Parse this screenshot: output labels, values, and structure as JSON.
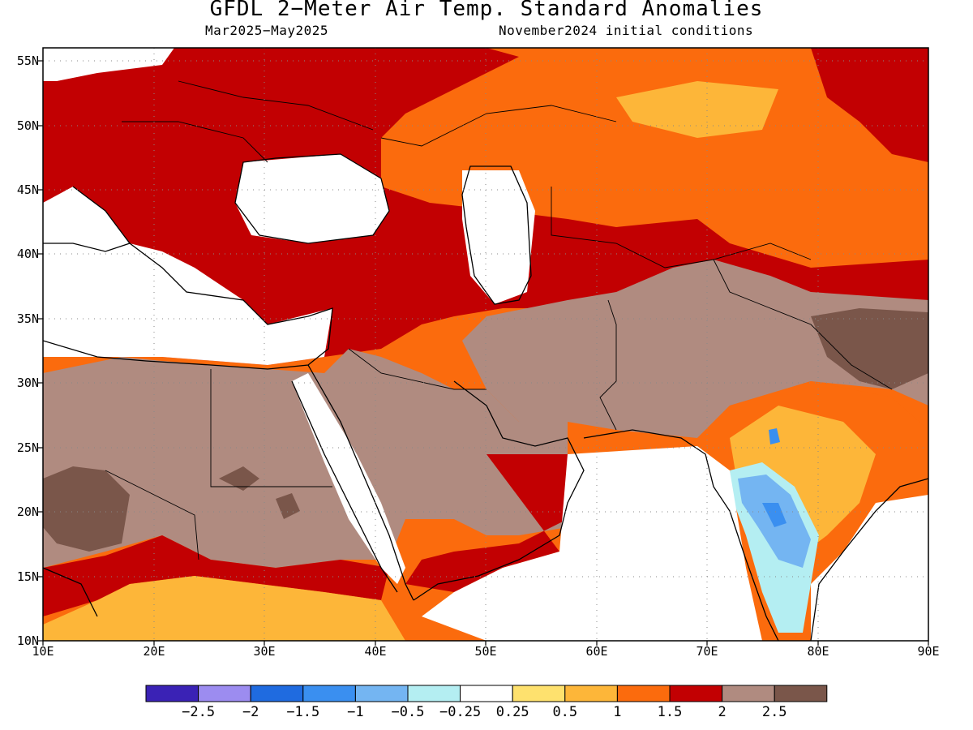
{
  "title": "GFDL 2−Meter Air Temp. Standard Anomalies",
  "subtitle_left": "Mar2025−May2025",
  "subtitle_right": "November2024 initial conditions",
  "map": {
    "lat_labels": [
      "55N",
      "50N",
      "45N",
      "40N",
      "35N",
      "30N",
      "25N",
      "20N",
      "15N",
      "10N"
    ],
    "lon_labels": [
      "10E",
      "20E",
      "30E",
      "40E",
      "50E",
      "60E",
      "70E",
      "80E",
      "90E"
    ],
    "lat_range": [
      10,
      56
    ],
    "lon_range": [
      10,
      90
    ]
  },
  "colorbar": {
    "colors": [
      "#3a22b5",
      "#9c8cf0",
      "#1f6be0",
      "#3a8ff0",
      "#74b5f2",
      "#b4eef2",
      "#ffffff",
      "#fee16e",
      "#fdb639",
      "#fb6b0d",
      "#c20002",
      "#b08b80",
      "#7a564a"
    ],
    "labels": [
      "−2.5",
      "−2",
      "−1.5",
      "−1",
      "−0.5",
      "−0.25",
      "0.25",
      "0.5",
      "1",
      "1.5",
      "2",
      "2.5"
    ]
  }
}
